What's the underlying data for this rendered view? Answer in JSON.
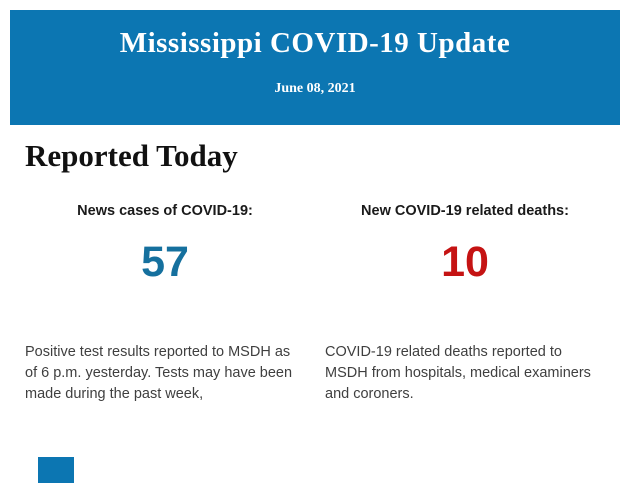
{
  "header": {
    "title": "Mississippi COVID-19 Update",
    "date": "June 08, 2021",
    "background_color": "#0c76b2"
  },
  "main": {
    "section_title": "Reported Today",
    "stats": [
      {
        "label": "News cases of COVID-19:",
        "value": "57",
        "value_color": "#15709e",
        "description": "Positive test results reported to MSDH as of 6 p.m. yesterday. Tests may have been made during the past week,"
      },
      {
        "label": "New COVID-19 related deaths:",
        "value": "10",
        "value_color": "#c51313",
        "description": "COVID-19 related deaths reported to MSDH from hospitals, medical examiners and coroners."
      }
    ]
  },
  "footer": {
    "next_section_color": "#0c76b2"
  }
}
